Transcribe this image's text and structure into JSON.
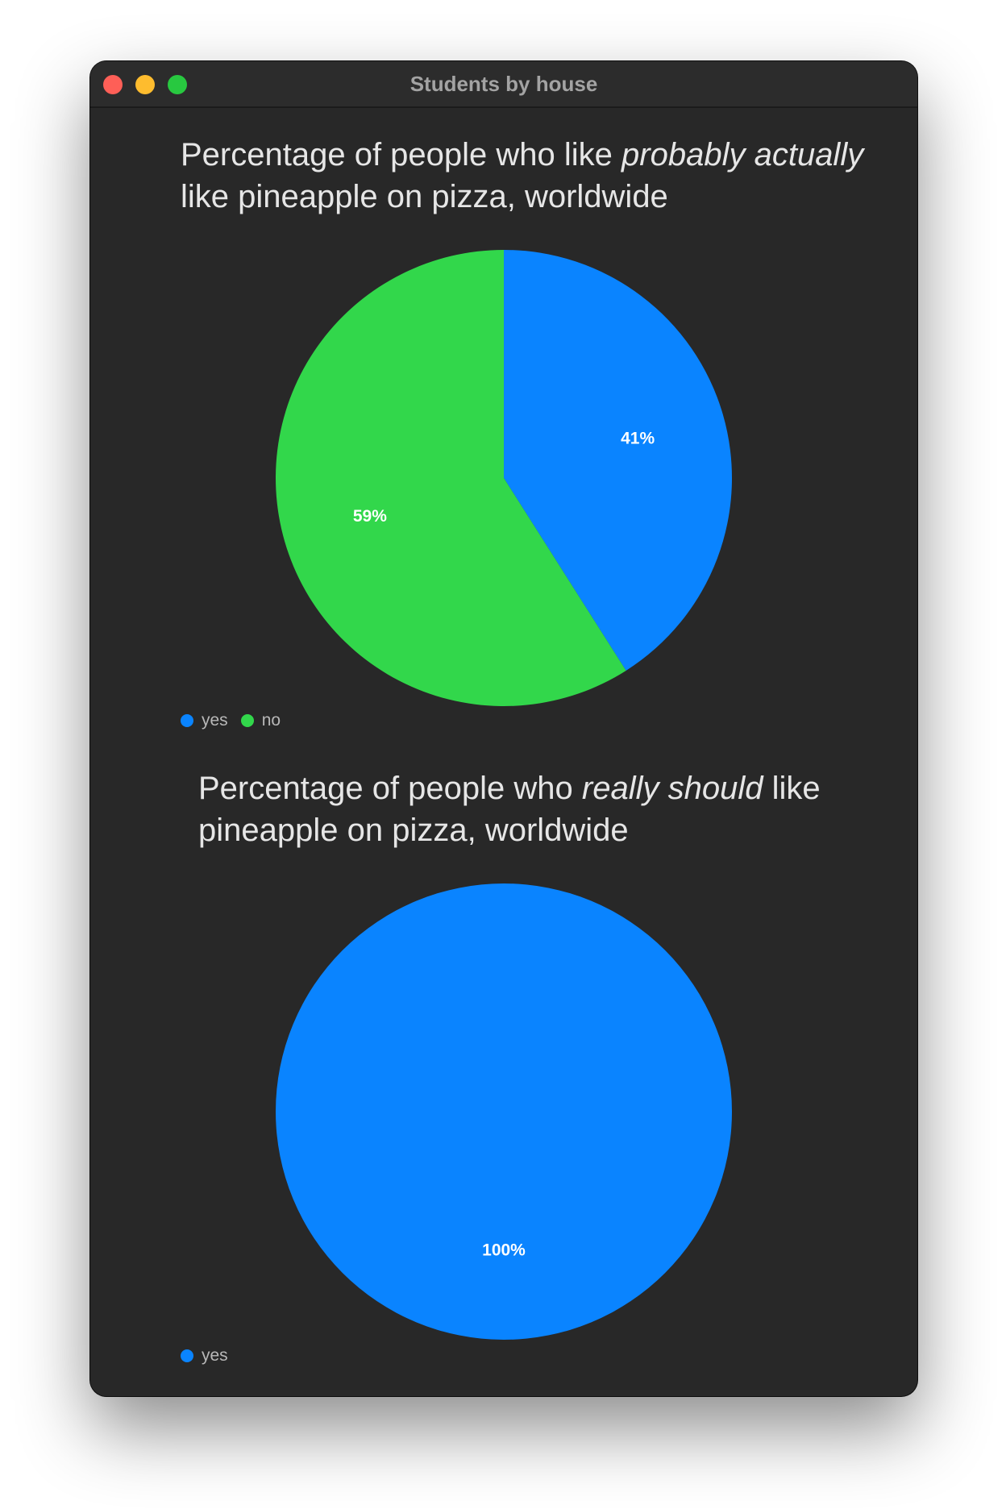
{
  "window": {
    "title": "Students by house"
  },
  "colors": {
    "yes": "#0a84ff",
    "no": "#32d74b"
  },
  "chart_data": [
    {
      "type": "pie",
      "title_parts": [
        {
          "text": "Percentage of people who like ",
          "italic": false
        },
        {
          "text": "probably actually",
          "italic": true
        },
        {
          "text": " like pineapple on pizza, worldwide",
          "italic": false
        }
      ],
      "categories": [
        "yes",
        "no"
      ],
      "values": [
        41,
        59
      ],
      "labels": [
        "41%",
        "59%"
      ],
      "colors": [
        "#0a84ff",
        "#32d74b"
      ],
      "legend": "bottom-left"
    },
    {
      "type": "pie",
      "title_parts": [
        {
          "text": "Percentage of people who ",
          "italic": false
        },
        {
          "text": "really should",
          "italic": true
        },
        {
          "text": " like pineapple on pizza, worldwide",
          "italic": false
        }
      ],
      "categories": [
        "yes"
      ],
      "values": [
        100
      ],
      "labels": [
        "100%"
      ],
      "colors": [
        "#0a84ff"
      ],
      "legend": "bottom-left"
    }
  ]
}
